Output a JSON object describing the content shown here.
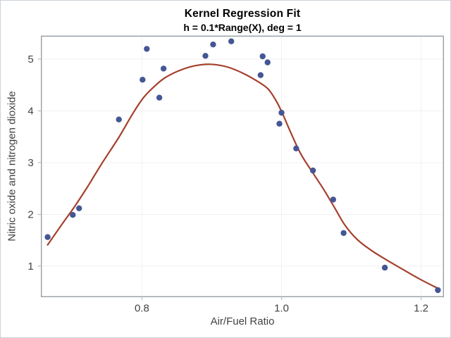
{
  "window": {
    "background": "#ffffff",
    "border_color": "#ccd3d8"
  },
  "styles": {
    "frame_color": "#90989d",
    "grid_color": "#f0f1f1",
    "tick_color": "#b8bfc3",
    "tick_label_color": "#424242",
    "axis_label_color": "#424242",
    "title_color": "#000000",
    "marker_color": "#445694",
    "fit_line_color": "#a5402d"
  },
  "chart_data": {
    "type": "scatter",
    "title": "Kernel Regression Fit",
    "subtitle": "h = 0.1*Range(X), deg = 1",
    "xlabel": "Air/Fuel Ratio",
    "ylabel": "Nitric oxide and nitrogen dioxide",
    "xlim": [
      0.656,
      1.232
    ],
    "ylim": [
      0.41,
      5.445
    ],
    "grid": true,
    "legend": "none",
    "xticks": {
      "values": [
        0.8,
        1.0,
        1.2
      ],
      "labels": [
        "0.8",
        "1.0",
        "1.2"
      ]
    },
    "yticks": {
      "values": [
        1,
        2,
        3,
        4,
        5
      ],
      "labels": [
        "1",
        "2",
        "3",
        "4",
        "5"
      ]
    },
    "series": [
      {
        "name": "observed-data",
        "type": "scatter",
        "marker": "filled-circle",
        "color": "#445694",
        "points": [
          [
            0.665,
            1.561
          ],
          [
            0.701,
            1.99
          ],
          [
            0.71,
            2.118
          ],
          [
            0.767,
            3.834
          ],
          [
            0.801,
            4.602
          ],
          [
            0.807,
            5.199
          ],
          [
            0.825,
            4.255
          ],
          [
            0.831,
            4.818
          ],
          [
            0.891,
            5.064
          ],
          [
            0.902,
            5.283
          ],
          [
            0.928,
            5.344
          ],
          [
            0.97,
            4.691
          ],
          [
            0.973,
            5.055
          ],
          [
            0.98,
            4.937
          ],
          [
            0.997,
            3.752
          ],
          [
            1.0,
            3.965
          ],
          [
            1.021,
            3.275
          ],
          [
            1.045,
            2.849
          ],
          [
            1.074,
            2.286
          ],
          [
            1.089,
            1.64
          ],
          [
            1.148,
            0.97
          ],
          [
            1.224,
            0.537
          ]
        ]
      },
      {
        "name": "kernel-regression-fit",
        "type": "line",
        "color": "#a5402d",
        "points": [
          [
            0.665,
            1.41
          ],
          [
            0.685,
            1.8
          ],
          [
            0.703,
            2.14
          ],
          [
            0.722,
            2.53
          ],
          [
            0.742,
            2.97
          ],
          [
            0.767,
            3.49
          ],
          [
            0.787,
            3.95
          ],
          [
            0.802,
            4.25
          ],
          [
            0.816,
            4.45
          ],
          [
            0.832,
            4.63
          ],
          [
            0.852,
            4.77
          ],
          [
            0.875,
            4.87
          ],
          [
            0.898,
            4.9
          ],
          [
            0.922,
            4.85
          ],
          [
            0.946,
            4.72
          ],
          [
            0.967,
            4.56
          ],
          [
            0.981,
            4.42
          ],
          [
            0.993,
            4.18
          ],
          [
            1.002,
            3.93
          ],
          [
            1.014,
            3.56
          ],
          [
            1.028,
            3.16
          ],
          [
            1.045,
            2.8
          ],
          [
            1.061,
            2.47
          ],
          [
            1.076,
            2.13
          ],
          [
            1.091,
            1.79
          ],
          [
            1.108,
            1.52
          ],
          [
            1.128,
            1.31
          ],
          [
            1.148,
            1.14
          ],
          [
            1.172,
            0.95
          ],
          [
            1.198,
            0.75
          ],
          [
            1.224,
            0.57
          ]
        ]
      }
    ]
  }
}
